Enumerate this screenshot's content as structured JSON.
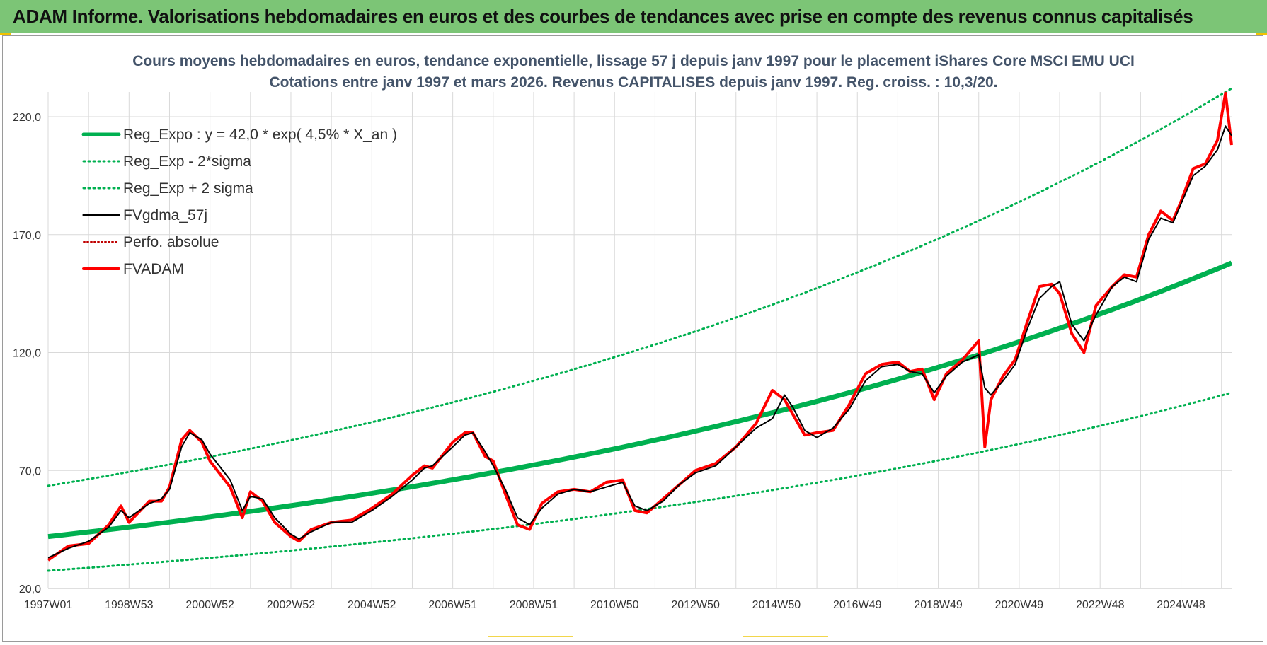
{
  "banner": {
    "title": "ADAM Informe. Valorisations hebdomadaires en euros et des courbes de tendances avec prise en compte des revenus connus capitalisés"
  },
  "colors": {
    "banner_bg": "#7cc576",
    "regression": "#00b050",
    "sigma": "#00b050",
    "smoothed": "#000000",
    "absolute": "#c00000",
    "fvadam": "#ff0000",
    "grid": "#d9d9d9"
  },
  "chart_data": {
    "type": "line",
    "title_line1": "Cours moyens hebdomadaires en euros, tendance exponentielle, lissage 57 j depuis janv 1997  pour le placement iShares Core MSCI EMU UCI",
    "title_line2": "Cotations entre janv 1997 et mars 2026. Revenus CAPITALISES depuis janv 1997. Reg. croiss. : 10,3/20.",
    "xlabel": "",
    "ylabel": "",
    "x_range_years": [
      1997.0,
      2026.25
    ],
    "ylim": [
      20,
      220
    ],
    "y_ticks": [
      20,
      70,
      120,
      170,
      220
    ],
    "y_tick_labels": [
      "20,0",
      "70,0",
      "120,0",
      "170,0",
      "220,0"
    ],
    "x_tick_labels": [
      "1997W01",
      "1998W53",
      "2000W52",
      "2002W52",
      "2004W52",
      "2006W51",
      "2008W51",
      "2010W50",
      "2012W50",
      "2014W50",
      "2016W49",
      "2018W49",
      "2020W49",
      "2022W48",
      "2024W48"
    ],
    "x_tick_years": [
      1997.0,
      1999.0,
      2001.0,
      2003.0,
      2005.0,
      2007.0,
      2009.0,
      2011.0,
      2013.0,
      2015.0,
      2017.0,
      2019.0,
      2021.0,
      2023.0,
      2025.0
    ],
    "legend_position": "top-left",
    "regression": {
      "a": 42.0,
      "rate_pct": 4.5
    },
    "series": [
      {
        "name": "Reg_Expo : y = 42,0 * exp( 4,5% *  X_an )",
        "style": "thick-solid",
        "x": [
          1997.0,
          2026.25
        ],
        "values": [
          42.0,
          158.0
        ]
      },
      {
        "name": "Reg_Exp - 2*sigma",
        "style": "dotted",
        "x": [
          1997.0,
          2026.25
        ],
        "values": [
          27.5,
          103.0
        ]
      },
      {
        "name": "Reg_Exp + 2 sigma",
        "style": "dotted",
        "x": [
          1997.0,
          2026.25
        ],
        "values": [
          63.5,
          232.0
        ]
      },
      {
        "name": "FVgdma_57j",
        "style": "solid-black",
        "x": [
          1997.0,
          1997.5,
          1998.0,
          1998.5,
          1998.8,
          1999.0,
          1999.5,
          1999.8,
          2000.0,
          2000.3,
          2000.5,
          2000.8,
          2001.0,
          2001.5,
          2001.8,
          2002.0,
          2002.3,
          2002.6,
          2003.0,
          2003.2,
          2003.5,
          2004.0,
          2004.5,
          2005.0,
          2005.5,
          2006.0,
          2006.3,
          2006.5,
          2007.0,
          2007.3,
          2007.5,
          2007.8,
          2008.0,
          2008.3,
          2008.6,
          2008.9,
          2009.2,
          2009.6,
          2010.0,
          2010.4,
          2010.8,
          2011.2,
          2011.5,
          2011.8,
          2012.2,
          2012.6,
          2013.0,
          2013.5,
          2014.0,
          2014.5,
          2014.9,
          2015.2,
          2015.4,
          2015.7,
          2016.0,
          2016.4,
          2016.8,
          2017.2,
          2017.6,
          2018.0,
          2018.3,
          2018.6,
          2018.9,
          2019.2,
          2019.6,
          2020.0,
          2020.15,
          2020.3,
          2020.6,
          2020.9,
          2021.2,
          2021.5,
          2021.8,
          2022.0,
          2022.3,
          2022.6,
          2022.9,
          2023.3,
          2023.6,
          2023.9,
          2024.2,
          2024.5,
          2024.8,
          2025.0,
          2025.3,
          2025.6,
          2025.9,
          2026.1,
          2026.25
        ],
        "values": [
          33,
          37,
          40,
          46,
          53,
          50,
          56,
          58,
          62,
          80,
          86,
          83,
          77,
          66,
          53,
          59,
          58,
          50,
          43,
          41,
          44,
          48,
          48,
          53,
          59,
          66,
          71,
          72,
          80,
          85,
          86,
          78,
          72,
          62,
          50,
          47,
          54,
          60,
          62,
          61,
          63,
          65,
          55,
          53,
          57,
          64,
          69,
          72,
          80,
          88,
          92,
          102,
          97,
          87,
          84,
          88,
          96,
          108,
          114,
          115,
          112,
          111,
          103,
          110,
          116,
          119,
          105,
          102,
          108,
          115,
          130,
          143,
          148,
          150,
          132,
          125,
          136,
          148,
          152,
          150,
          168,
          177,
          175,
          183,
          195,
          199,
          206,
          216,
          212
        ]
      },
      {
        "name": "Perfo. absolue",
        "style": "dotted-darkred",
        "x": [],
        "values": []
      },
      {
        "name": "FVADAM",
        "style": "thick-red",
        "x": [
          1997.0,
          1997.5,
          1998.0,
          1998.5,
          1998.8,
          1999.0,
          1999.5,
          1999.8,
          2000.0,
          2000.3,
          2000.5,
          2000.8,
          2001.0,
          2001.5,
          2001.8,
          2002.0,
          2002.3,
          2002.6,
          2003.0,
          2003.2,
          2003.5,
          2004.0,
          2004.5,
          2005.0,
          2005.5,
          2006.0,
          2006.3,
          2006.5,
          2007.0,
          2007.3,
          2007.5,
          2007.8,
          2008.0,
          2008.3,
          2008.6,
          2008.9,
          2009.2,
          2009.6,
          2010.0,
          2010.4,
          2010.8,
          2011.2,
          2011.5,
          2011.8,
          2012.2,
          2012.6,
          2013.0,
          2013.5,
          2014.0,
          2014.5,
          2014.9,
          2015.2,
          2015.4,
          2015.7,
          2016.0,
          2016.4,
          2016.8,
          2017.2,
          2017.6,
          2018.0,
          2018.3,
          2018.6,
          2018.9,
          2019.2,
          2019.6,
          2020.0,
          2020.15,
          2020.3,
          2020.6,
          2020.9,
          2021.2,
          2021.5,
          2021.8,
          2022.0,
          2022.3,
          2022.6,
          2022.9,
          2023.3,
          2023.6,
          2023.9,
          2024.2,
          2024.5,
          2024.8,
          2025.0,
          2025.3,
          2025.6,
          2025.9,
          2026.1,
          2026.25
        ],
        "values": [
          32,
          38,
          39,
          47,
          55,
          48,
          57,
          57,
          63,
          83,
          87,
          82,
          74,
          63,
          50,
          61,
          57,
          48,
          42,
          40,
          45,
          48,
          49,
          54,
          60,
          68,
          72,
          71,
          82,
          86,
          86,
          76,
          74,
          60,
          47,
          45,
          56,
          61,
          62,
          61,
          65,
          66,
          53,
          52,
          58,
          64,
          70,
          73,
          80,
          90,
          104,
          100,
          94,
          85,
          86,
          87,
          98,
          111,
          115,
          116,
          112,
          113,
          100,
          111,
          117,
          125,
          80,
          100,
          110,
          117,
          133,
          148,
          149,
          145,
          128,
          120,
          140,
          148,
          153,
          152,
          170,
          180,
          176,
          184,
          198,
          200,
          210,
          230,
          208
        ]
      }
    ]
  }
}
